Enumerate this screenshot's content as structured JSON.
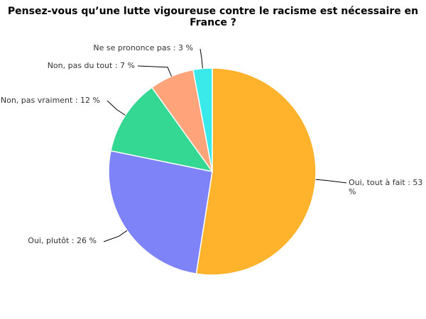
{
  "chart_data": {
    "type": "pie",
    "title": "Pensez-vous qu’une lutte vigoureuse contre le racisme est nécessaire en France ?",
    "start_angle_deg": 0,
    "direction": "clockwise",
    "slices": [
      {
        "label": "Oui, tout à fait",
        "value": 53,
        "value_label": "53 %",
        "color": "#FFB22B"
      },
      {
        "label": "Oui, plutôt",
        "value": 26,
        "value_label": "26 %",
        "color": "#7E83F7"
      },
      {
        "label": "Non, pas vraiment",
        "value": 12,
        "value_label": "12 %",
        "color": "#35D893"
      },
      {
        "label": "Non, pas du tout",
        "value": 7,
        "value_label": "7 %",
        "color": "#FFA37A"
      },
      {
        "label": "Ne se prononce pas",
        "value": 3,
        "value_label": "3 %",
        "color": "#3AE9E9"
      }
    ]
  }
}
